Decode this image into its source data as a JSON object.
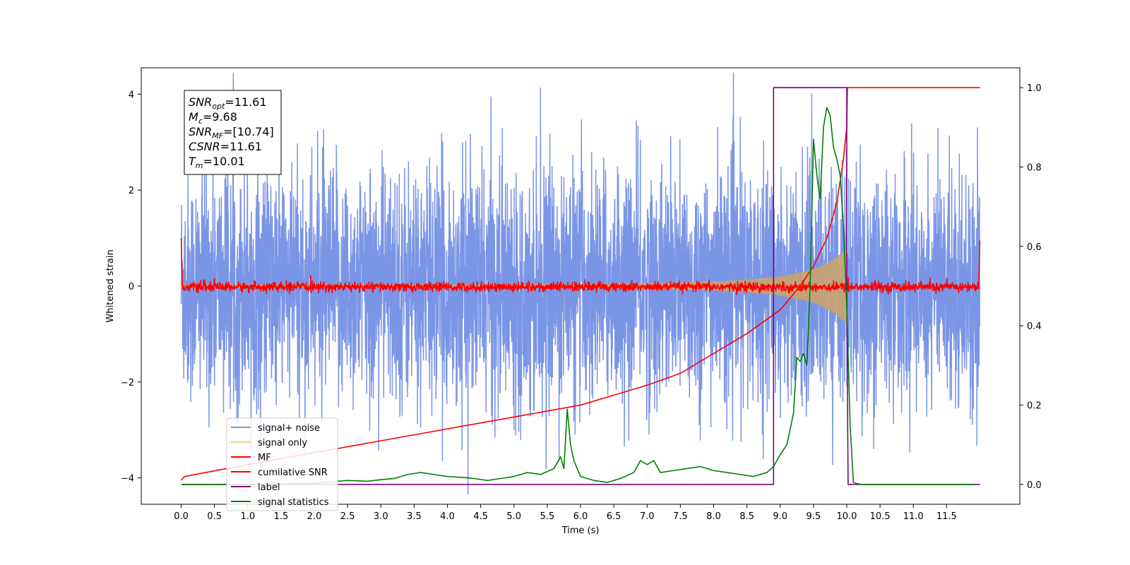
{
  "chart_data": {
    "type": "line",
    "xlabel": "Time (s)",
    "ylabel": "Whitened strain",
    "xlim": [
      -0.6,
      12.6
    ],
    "ylim": [
      -4.55,
      4.55
    ],
    "y2lim": [
      -0.05,
      1.05
    ],
    "xticks": [
      0.0,
      0.5,
      1.0,
      1.5,
      2.0,
      2.5,
      3.0,
      3.5,
      4.0,
      4.5,
      5.0,
      5.5,
      6.0,
      6.5,
      7.0,
      7.5,
      8.0,
      8.5,
      9.0,
      9.5,
      10.0,
      10.5,
      11.0,
      11.5
    ],
    "xtick_labels": [
      "0.0",
      "0.5",
      "1.0",
      "1.5",
      "2.0",
      "2.5",
      "3.0",
      "3.5",
      "4.0",
      "4.5",
      "5.0",
      "5.5",
      "6.0",
      "6.5",
      "7.0",
      "7.5",
      "8.0",
      "8.5",
      "9.0",
      "9.5",
      "10.0",
      "10.5",
      "11.0",
      "11.5"
    ],
    "yticks": [
      -4,
      -2,
      0,
      2,
      4
    ],
    "ytick_labels": [
      "−4",
      "−2",
      "0",
      "2",
      "4"
    ],
    "y2ticks": [
      0.0,
      0.2,
      0.4,
      0.6,
      0.8,
      1.0
    ],
    "y2tick_labels": [
      "0.0",
      "0.2",
      "0.4",
      "0.6",
      "0.8",
      "1.0"
    ],
    "grid": false,
    "legend_position": "lower-left",
    "annotation": [
      {
        "sym": "SNR",
        "sub": "opt",
        "val": "=11.61"
      },
      {
        "sym": "M",
        "sub": "c",
        "val": "=9.68"
      },
      {
        "sym": "SNR",
        "sub": "MF",
        "val": "=[10.74]"
      },
      {
        "sym": "CSNR",
        "sub": "",
        "val": "=11.61"
      },
      {
        "sym": "T",
        "sub": "m",
        "val": "=10.01"
      }
    ],
    "series": [
      {
        "name": "signal+ noise",
        "color": "#7b95e6",
        "axis": "left",
        "x_range": [
          0.0,
          12.0
        ],
        "amplitude_envelope": {
          "x": [
            0.0,
            9.0,
            10.0,
            12.0
          ],
          "approx_peak": [
            2.7,
            2.7,
            2.7,
            2.7
          ]
        }
      },
      {
        "name": "signal only",
        "color": "#f5c46a",
        "axis": "left",
        "chirp_envelope": {
          "x": [
            0.0,
            6.0,
            7.0,
            8.0,
            8.5,
            9.0,
            9.5,
            9.8,
            10.0,
            10.01
          ],
          "amplitude": [
            0.03,
            0.04,
            0.06,
            0.09,
            0.13,
            0.2,
            0.34,
            0.55,
            0.78,
            0.0
          ]
        }
      },
      {
        "name": "MF",
        "color": "#ff0000",
        "axis": "left",
        "x_range": [
          0.0,
          12.0
        ],
        "approx_amplitude": 0.1,
        "x_edges": [
          0.0,
          0.02,
          11.98,
          12.0
        ],
        "edge_values": [
          1.0,
          -0.05,
          -0.05,
          0.95
        ]
      },
      {
        "name": "cumilative SNR",
        "color": "#ff0000",
        "axis": "right",
        "x": [
          0.0,
          0.05,
          1.0,
          2.0,
          3.0,
          4.0,
          5.0,
          6.0,
          7.0,
          7.5,
          8.0,
          8.5,
          9.0,
          9.3,
          9.5,
          9.7,
          9.85,
          9.95,
          10.0,
          10.01,
          12.0
        ],
        "values": [
          0.01,
          0.02,
          0.05,
          0.08,
          0.11,
          0.14,
          0.17,
          0.2,
          0.25,
          0.28,
          0.33,
          0.38,
          0.44,
          0.5,
          0.55,
          0.62,
          0.71,
          0.82,
          0.9,
          1.0,
          1.0
        ]
      },
      {
        "name": "label",
        "color": "#800080",
        "axis": "right",
        "x": [
          0.0,
          8.9,
          8.9,
          10.0,
          10.0,
          10.02,
          12.0
        ],
        "values": [
          0.0,
          0.0,
          1.0,
          1.0,
          0.5,
          0.0,
          0.0
        ]
      },
      {
        "name": "signal statistics",
        "color": "#008000",
        "axis": "right",
        "x": [
          0.0,
          1.0,
          2.0,
          2.5,
          2.8,
          3.0,
          3.2,
          3.4,
          3.6,
          3.8,
          4.0,
          4.2,
          4.4,
          4.6,
          4.8,
          5.0,
          5.2,
          5.4,
          5.6,
          5.7,
          5.75,
          5.8,
          5.85,
          5.9,
          6.0,
          6.2,
          6.4,
          6.6,
          6.8,
          6.9,
          7.0,
          7.1,
          7.2,
          7.4,
          7.6,
          7.8,
          8.0,
          8.2,
          8.4,
          8.6,
          8.8,
          8.9,
          9.0,
          9.1,
          9.2,
          9.25,
          9.3,
          9.35,
          9.4,
          9.45,
          9.5,
          9.55,
          9.6,
          9.65,
          9.7,
          9.75,
          9.8,
          9.85,
          9.9,
          9.95,
          10.0,
          10.05,
          10.1,
          10.2,
          11.0,
          11.5,
          11.9
        ],
        "values": [
          0.0,
          0.0,
          0.003,
          0.01,
          0.008,
          0.012,
          0.015,
          0.025,
          0.03,
          0.025,
          0.02,
          0.018,
          0.015,
          0.01,
          0.015,
          0.02,
          0.03,
          0.025,
          0.04,
          0.07,
          0.04,
          0.19,
          0.1,
          0.06,
          0.02,
          0.01,
          0.005,
          0.015,
          0.03,
          0.06,
          0.05,
          0.06,
          0.03,
          0.035,
          0.04,
          0.045,
          0.035,
          0.03,
          0.025,
          0.02,
          0.03,
          0.045,
          0.075,
          0.1,
          0.18,
          0.32,
          0.31,
          0.33,
          0.3,
          0.5,
          0.87,
          0.78,
          0.72,
          0.9,
          0.95,
          0.93,
          0.85,
          0.82,
          0.78,
          0.65,
          0.45,
          0.15,
          0.005,
          0.0,
          0.0,
          0.0,
          0.0
        ]
      }
    ]
  }
}
